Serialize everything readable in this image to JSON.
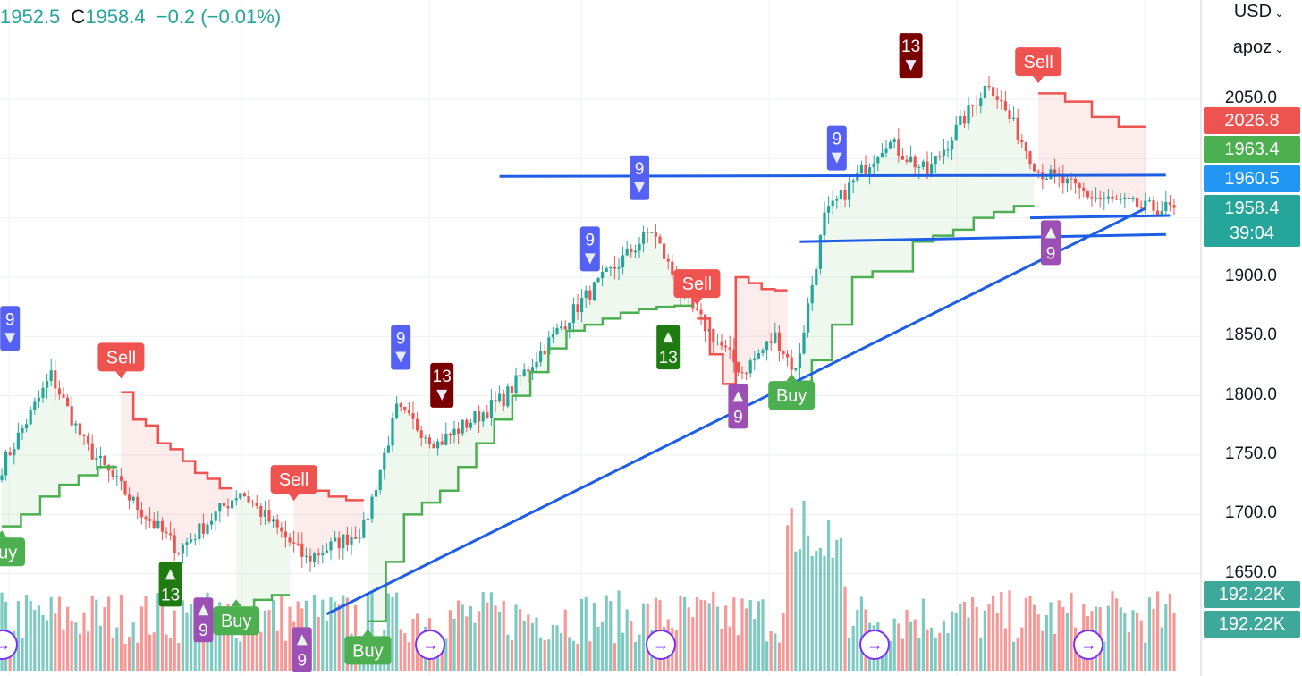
{
  "header": {
    "o_value": "1952.5",
    "c_label": "C",
    "c_value": "1958.4",
    "change": "−0.2 (−0.01%)",
    "currency": "USD",
    "scale_mode": "apoz"
  },
  "colors": {
    "up": "#26a69a",
    "down": "#ef5350",
    "trend_up_line": "#4caf50",
    "trend_down_line": "#ef5350",
    "trendline": "#1e5ee6",
    "td9_sell": "#5561f5",
    "td13_sell": "#7a0000",
    "td9_buy": "#9c4fb5",
    "td13_buy": "#1f7a12",
    "nav_icon": "#7b2ff7"
  },
  "price_axis": {
    "labels": [
      "2050.0",
      "1900.0",
      "1850.0",
      "1800.0",
      "1750.0",
      "1700.0",
      "1650.0"
    ]
  },
  "badges": {
    "sell_stop": "2026.8",
    "buy_stop": "1963.4",
    "line_level": "1960.5",
    "last_price": "1958.4",
    "countdown": "39:04",
    "volume_1": "192.22K",
    "volume_2": "192.22K"
  },
  "chart_data": {
    "type": "candlestick",
    "price_range": [
      1610,
      2090
    ],
    "grid": true,
    "signals": [
      {
        "label": "Buy",
        "index": 0,
        "price": 1688
      },
      {
        "label": "Sell",
        "index": 29,
        "price": 1813
      },
      {
        "label": "Buy",
        "index": 57,
        "price": 1630
      },
      {
        "label": "Sell",
        "index": 71,
        "price": 1710
      },
      {
        "label": "Buy",
        "index": 89,
        "price": 1605
      },
      {
        "label": "Sell",
        "index": 169,
        "price": 1875
      },
      {
        "label": "Buy",
        "index": 192,
        "price": 1820
      },
      {
        "label": "Sell",
        "index": 252,
        "price": 2062
      }
    ],
    "td_counts": [
      {
        "label": "9",
        "index": 2,
        "price": 1838,
        "dir": "down"
      },
      {
        "label": "13",
        "index": 41,
        "price": 1660,
        "dir": "up"
      },
      {
        "label": "9",
        "index": 49,
        "price": 1630,
        "dir": "up"
      },
      {
        "label": "9",
        "index": 73,
        "price": 1605,
        "dir": "up"
      },
      {
        "label": "9",
        "index": 97,
        "price": 1822,
        "dir": "down"
      },
      {
        "label": "13",
        "index": 107,
        "price": 1790,
        "dir": "down"
      },
      {
        "label": "9",
        "index": 143,
        "price": 1905,
        "dir": "down"
      },
      {
        "label": "9",
        "index": 155,
        "price": 1965,
        "dir": "down"
      },
      {
        "label": "13",
        "index": 162,
        "price": 1860,
        "dir": "up"
      },
      {
        "label": "9",
        "index": 179,
        "price": 1810,
        "dir": "up"
      },
      {
        "label": "9",
        "index": 203,
        "price": 1990,
        "dir": "down"
      },
      {
        "label": "13",
        "index": 221,
        "price": 2068,
        "dir": "down"
      },
      {
        "label": "9",
        "index": 255,
        "price": 1948,
        "dir": "up"
      }
    ],
    "trend_stop": [
      {
        "from": 0,
        "to": 28,
        "side": "up",
        "levels": [
          1690,
          1700,
          1715,
          1725,
          1733,
          1740
        ]
      },
      {
        "from": 29,
        "to": 56,
        "side": "down",
        "levels": [
          1803,
          1780,
          1775,
          1760,
          1755,
          1745,
          1735,
          1730,
          1722
        ]
      },
      {
        "from": 57,
        "to": 70,
        "side": "up",
        "levels": [
          1620,
          1628,
          1632
        ]
      },
      {
        "from": 71,
        "to": 88,
        "side": "down",
        "levels": [
          1722,
          1720,
          1715,
          1712
        ]
      },
      {
        "from": 89,
        "to": 168,
        "side": "up",
        "levels": [
          1610,
          1660,
          1700,
          1710,
          1720,
          1740,
          1760,
          1780,
          1800,
          1820,
          1840,
          1855,
          1860,
          1865,
          1870,
          1873,
          1875,
          1876
        ]
      },
      {
        "from": 169,
        "to": 191,
        "side": "down",
        "levels": [
          1865,
          1835,
          1810,
          1900,
          1895,
          1890,
          1889
        ]
      },
      {
        "from": 192,
        "to": 251,
        "side": "up",
        "levels": [
          1812,
          1830,
          1860,
          1900,
          1905,
          1905,
          1930,
          1935,
          1940,
          1950,
          1955,
          1960
        ]
      },
      {
        "from": 252,
        "to": 278,
        "side": "down",
        "levels": [
          2055,
          2048,
          2035,
          2026.8
        ]
      }
    ],
    "trendlines": [
      {
        "p1": [
          79,
          1616
        ],
        "p2": [
          278,
          1958
        ]
      },
      {
        "p1": [
          121,
          1985
        ],
        "p2": [
          283,
          1986
        ]
      },
      {
        "p1": [
          194,
          1930
        ],
        "p2": [
          283,
          1936
        ]
      },
      {
        "p1": [
          250,
          1950
        ],
        "p2": [
          284,
          1952
        ]
      }
    ],
    "key_prices": [
      {
        "index": 0,
        "price": 1740
      },
      {
        "index": 12,
        "price": 1817
      },
      {
        "index": 20,
        "price": 1760
      },
      {
        "index": 32,
        "price": 1710
      },
      {
        "index": 43,
        "price": 1670
      },
      {
        "index": 58,
        "price": 1720
      },
      {
        "index": 74,
        "price": 1662
      },
      {
        "index": 88,
        "price": 1688
      },
      {
        "index": 96,
        "price": 1788
      },
      {
        "index": 106,
        "price": 1760
      },
      {
        "index": 122,
        "price": 1798
      },
      {
        "index": 141,
        "price": 1880
      },
      {
        "index": 158,
        "price": 1940
      },
      {
        "index": 166,
        "price": 1880
      },
      {
        "index": 180,
        "price": 1820
      },
      {
        "index": 188,
        "price": 1850
      },
      {
        "index": 193,
        "price": 1820
      },
      {
        "index": 200,
        "price": 1950
      },
      {
        "index": 215,
        "price": 2015
      },
      {
        "index": 225,
        "price": 1988
      },
      {
        "index": 240,
        "price": 2065
      },
      {
        "index": 252,
        "price": 1990
      },
      {
        "index": 265,
        "price": 1968
      },
      {
        "index": 278,
        "price": 1958
      }
    ],
    "last_close": 1958.4,
    "volume_last": "192.22K",
    "navigation_markers": [
      0,
      104,
      160,
      212,
      264
    ]
  }
}
